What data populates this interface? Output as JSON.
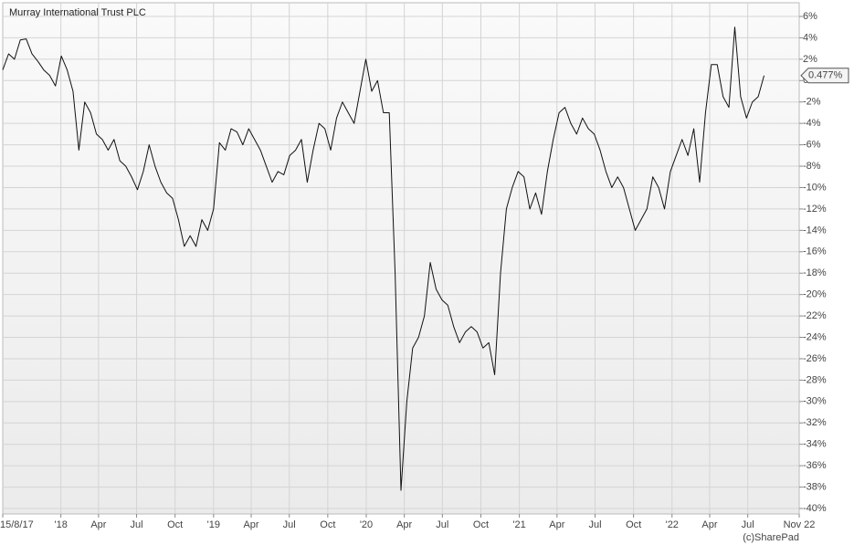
{
  "chart_data": {
    "type": "line",
    "title": "Murray International Trust PLC",
    "watermark": "(c)SharePad",
    "color": "#111111",
    "grid": true,
    "last_value": {
      "value": 0.477,
      "label": "0.477%"
    },
    "xlim": [
      "2017-08-15",
      "2022-11-01"
    ],
    "xticks": [
      {
        "value": "2017-08-15",
        "label": "15/8/17"
      },
      {
        "value": "2018-01-01",
        "label": "'18"
      },
      {
        "value": "2018-04-01",
        "label": "Apr"
      },
      {
        "value": "2018-07-01",
        "label": "Jul"
      },
      {
        "value": "2018-10-01",
        "label": "Oct"
      },
      {
        "value": "2019-01-01",
        "label": "'19"
      },
      {
        "value": "2019-04-01",
        "label": "Apr"
      },
      {
        "value": "2019-07-01",
        "label": "Jul"
      },
      {
        "value": "2019-10-01",
        "label": "Oct"
      },
      {
        "value": "2020-01-01",
        "label": "'20"
      },
      {
        "value": "2020-04-01",
        "label": "Apr"
      },
      {
        "value": "2020-07-01",
        "label": "Jul"
      },
      {
        "value": "2020-10-01",
        "label": "Oct"
      },
      {
        "value": "2021-01-01",
        "label": "'21"
      },
      {
        "value": "2021-04-01",
        "label": "Apr"
      },
      {
        "value": "2021-07-01",
        "label": "Jul"
      },
      {
        "value": "2021-10-01",
        "label": "Oct"
      },
      {
        "value": "2022-01-01",
        "label": "'22"
      },
      {
        "value": "2022-04-01",
        "label": "Apr"
      },
      {
        "value": "2022-07-01",
        "label": "Jul"
      },
      {
        "value": "2022-11-01",
        "label": "Nov 22"
      }
    ],
    "ylim": [
      -40,
      6
    ],
    "yticks": [
      {
        "value": 6,
        "label": "6%"
      },
      {
        "value": 4,
        "label": "4%"
      },
      {
        "value": 2,
        "label": "2%"
      },
      {
        "value": 0,
        "label": "0%"
      },
      {
        "value": -2,
        "label": "-2%"
      },
      {
        "value": -4,
        "label": "-4%"
      },
      {
        "value": -6,
        "label": "-6%"
      },
      {
        "value": -8,
        "label": "-8%"
      },
      {
        "value": -10,
        "label": "-10%"
      },
      {
        "value": -12,
        "label": "-12%"
      },
      {
        "value": -14,
        "label": "-14%"
      },
      {
        "value": -16,
        "label": "-16%"
      },
      {
        "value": -18,
        "label": "-18%"
      },
      {
        "value": -20,
        "label": "-20%"
      },
      {
        "value": -22,
        "label": "-22%"
      },
      {
        "value": -24,
        "label": "-24%"
      },
      {
        "value": -26,
        "label": "-26%"
      },
      {
        "value": -28,
        "label": "-28%"
      },
      {
        "value": -30,
        "label": "-30%"
      },
      {
        "value": -32,
        "label": "-32%"
      },
      {
        "value": -34,
        "label": "-34%"
      },
      {
        "value": -36,
        "label": "-36%"
      },
      {
        "value": -38,
        "label": "-38%"
      },
      {
        "value": -40,
        "label": "-40%"
      }
    ],
    "x": [
      "2017-08-15",
      "2017-08-29",
      "2017-09-12",
      "2017-09-26",
      "2017-10-10",
      "2017-10-24",
      "2017-11-07",
      "2017-11-21",
      "2017-12-05",
      "2017-12-19",
      "2018-01-02",
      "2018-01-16",
      "2018-01-30",
      "2018-02-13",
      "2018-02-27",
      "2018-03-13",
      "2018-03-27",
      "2018-04-10",
      "2018-04-24",
      "2018-05-08",
      "2018-05-22",
      "2018-06-05",
      "2018-06-19",
      "2018-07-03",
      "2018-07-17",
      "2018-07-31",
      "2018-08-14",
      "2018-08-28",
      "2018-09-11",
      "2018-09-25",
      "2018-10-09",
      "2018-10-23",
      "2018-11-06",
      "2018-11-20",
      "2018-12-04",
      "2018-12-18",
      "2019-01-01",
      "2019-01-15",
      "2019-01-29",
      "2019-02-12",
      "2019-02-26",
      "2019-03-12",
      "2019-03-26",
      "2019-04-09",
      "2019-04-23",
      "2019-05-07",
      "2019-05-21",
      "2019-06-04",
      "2019-06-18",
      "2019-07-02",
      "2019-07-16",
      "2019-07-30",
      "2019-08-13",
      "2019-08-27",
      "2019-09-10",
      "2019-09-24",
      "2019-10-08",
      "2019-10-22",
      "2019-11-05",
      "2019-11-19",
      "2019-12-03",
      "2019-12-17",
      "2019-12-31",
      "2020-01-14",
      "2020-01-28",
      "2020-02-11",
      "2020-02-25",
      "2020-03-10",
      "2020-03-24",
      "2020-04-07",
      "2020-04-21",
      "2020-05-05",
      "2020-05-19",
      "2020-06-02",
      "2020-06-16",
      "2020-06-30",
      "2020-07-14",
      "2020-07-28",
      "2020-08-11",
      "2020-08-25",
      "2020-09-08",
      "2020-09-22",
      "2020-10-06",
      "2020-10-20",
      "2020-11-03",
      "2020-11-17",
      "2020-12-01",
      "2020-12-15",
      "2020-12-29",
      "2021-01-12",
      "2021-01-26",
      "2021-02-09",
      "2021-02-23",
      "2021-03-09",
      "2021-03-23",
      "2021-04-06",
      "2021-04-20",
      "2021-05-04",
      "2021-05-18",
      "2021-06-01",
      "2021-06-15",
      "2021-06-29",
      "2021-07-13",
      "2021-07-27",
      "2021-08-10",
      "2021-08-24",
      "2021-09-07",
      "2021-09-21",
      "2021-10-05",
      "2021-10-19",
      "2021-11-02",
      "2021-11-16",
      "2021-11-30",
      "2021-12-14",
      "2021-12-28",
      "2022-01-11",
      "2022-01-25",
      "2022-02-08",
      "2022-02-22",
      "2022-03-08",
      "2022-03-22",
      "2022-04-05",
      "2022-04-19",
      "2022-05-03",
      "2022-05-17",
      "2022-05-31",
      "2022-06-14",
      "2022-06-28",
      "2022-07-12",
      "2022-07-26",
      "2022-08-09"
    ],
    "values": [
      1,
      2.5,
      2,
      3.8,
      3.9,
      2.5,
      1.8,
      1,
      0.5,
      -0.5,
      2.3,
      1,
      -1,
      -6.5,
      -2,
      -3,
      -5,
      -5.5,
      -6.5,
      -5.5,
      -7.5,
      -8,
      -9,
      -10.2,
      -8.5,
      -6,
      -8,
      -9.5,
      -10.5,
      -11,
      -13,
      -15.5,
      -14.5,
      -15.5,
      -13,
      -14,
      -12,
      -5.8,
      -6.5,
      -4.5,
      -4.8,
      -6,
      -4.5,
      -5.5,
      -6.5,
      -8,
      -9.5,
      -8.5,
      -8.8,
      -7,
      -6.5,
      -5.5,
      -9.5,
      -6.5,
      -4,
      -4.5,
      -6.5,
      -3.5,
      -2,
      -3,
      -4,
      -1,
      2,
      -1,
      0,
      -3,
      -3,
      -18,
      -38.3,
      -30,
      -25,
      -24,
      -22,
      -17,
      -19.5,
      -20.5,
      -21,
      -23,
      -24.5,
      -23.5,
      -23,
      -23.5,
      -25,
      -24.5,
      -27.5,
      -18,
      -12,
      -10,
      -8.5,
      -9,
      -12,
      -10.5,
      -12.5,
      -8.5,
      -5.5,
      -3,
      -2.5,
      -4,
      -5,
      -3.5,
      -4.5,
      -5,
      -6.5,
      -8.5,
      -10,
      -9,
      -10,
      -12,
      -14,
      -13,
      -12,
      -9,
      -10,
      -12,
      -8.5,
      -7,
      -5.5,
      -7,
      -4.5,
      -9.5,
      -3,
      1.5,
      1.5,
      -1.5,
      -2.5,
      5,
      -1.5,
      -3.5,
      -2,
      -1.5,
      0.477
    ]
  }
}
